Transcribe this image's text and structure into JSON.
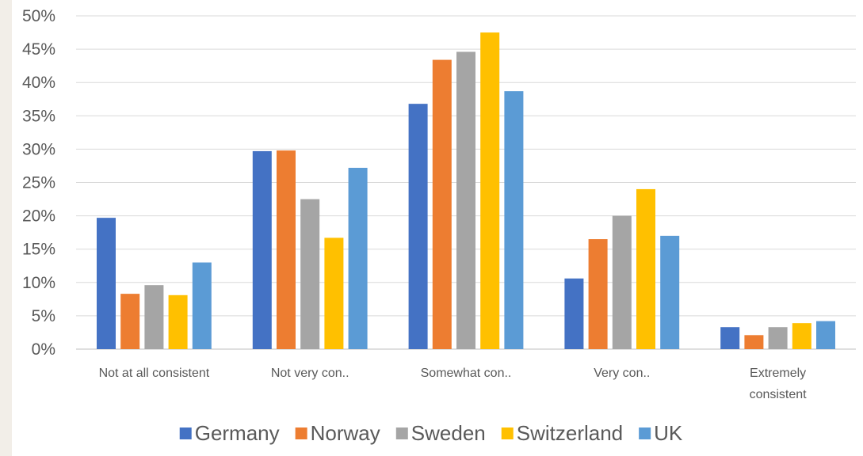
{
  "chart_data": {
    "type": "bar",
    "title": "",
    "xlabel": "",
    "ylabel": "",
    "ylim": [
      0,
      50
    ],
    "y_ticks": [
      "0%",
      "5%",
      "10%",
      "15%",
      "20%",
      "25%",
      "30%",
      "35%",
      "40%",
      "45%",
      "50%"
    ],
    "y_tick_values": [
      0,
      5,
      10,
      15,
      20,
      25,
      30,
      35,
      40,
      45,
      50
    ],
    "grid": true,
    "legend_position": "bottom",
    "categories": [
      [
        "Not at all consistent"
      ],
      [
        "Not very con.."
      ],
      [
        "Somewhat con.."
      ],
      [
        "Very con.."
      ],
      [
        "Extremely",
        "consistent"
      ]
    ],
    "series": [
      {
        "name": "Germany",
        "color": "#4472c4",
        "values": [
          19.7,
          29.7,
          36.8,
          10.6,
          3.3
        ]
      },
      {
        "name": "Norway",
        "color": "#ed7d31",
        "values": [
          8.3,
          29.8,
          43.4,
          16.5,
          2.1
        ]
      },
      {
        "name": "Sweden",
        "color": "#a5a5a5",
        "values": [
          9.6,
          22.5,
          44.6,
          20.0,
          3.3
        ]
      },
      {
        "name": "Switzerland",
        "color": "#ffc000",
        "values": [
          8.1,
          16.7,
          47.5,
          24.0,
          3.9
        ]
      },
      {
        "name": "UK",
        "color": "#5b9bd5",
        "values": [
          13.0,
          27.2,
          38.7,
          17.0,
          4.2
        ]
      }
    ]
  }
}
